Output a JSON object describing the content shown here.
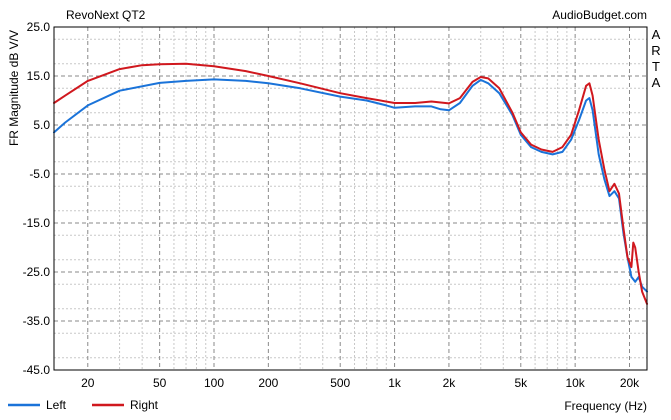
{
  "chart_data": {
    "type": "line",
    "title": "RevoNext QT2",
    "watermark": "AudioBudget.com",
    "side_label": "ARTA",
    "xlabel": "Frequency (Hz)",
    "ylabel": "FR Magnitude dB V/V",
    "x_scale": "log",
    "xlim": [
      13,
      25000
    ],
    "ylim": [
      -45,
      25
    ],
    "grid": true,
    "y_ticks": [
      25.0,
      15.0,
      5.0,
      -5.0,
      -15.0,
      -25.0,
      -35.0,
      -45.0
    ],
    "y_tick_labels": [
      "25.0",
      "15.0",
      "5.0",
      "-5.0",
      "-15.0",
      "-25.0",
      "-35.0",
      "-45.0"
    ],
    "x_ticks": [
      20,
      50,
      100,
      200,
      500,
      1000,
      2000,
      5000,
      10000,
      20000
    ],
    "x_tick_labels": [
      "20",
      "50",
      "100",
      "200",
      "500",
      "1k",
      "2k",
      "5k",
      "10k",
      "20k"
    ],
    "legend_position": "bottom-left",
    "series": [
      {
        "name": "Left",
        "color": "#1a73d9",
        "points": [
          [
            13,
            3.5
          ],
          [
            15,
            5.5
          ],
          [
            20,
            9.0
          ],
          [
            30,
            12.0
          ],
          [
            50,
            13.6
          ],
          [
            70,
            14.0
          ],
          [
            100,
            14.3
          ],
          [
            150,
            14.0
          ],
          [
            200,
            13.5
          ],
          [
            300,
            12.5
          ],
          [
            500,
            10.8
          ],
          [
            700,
            10.0
          ],
          [
            900,
            9.0
          ],
          [
            1000,
            8.5
          ],
          [
            1300,
            8.8
          ],
          [
            1600,
            8.8
          ],
          [
            1800,
            8.2
          ],
          [
            2000,
            8.0
          ],
          [
            2300,
            9.5
          ],
          [
            2700,
            13.0
          ],
          [
            3000,
            14.2
          ],
          [
            3300,
            13.5
          ],
          [
            3800,
            11.5
          ],
          [
            4500,
            7.0
          ],
          [
            5000,
            3.0
          ],
          [
            5700,
            0.5
          ],
          [
            6500,
            -0.5
          ],
          [
            7500,
            -1.0
          ],
          [
            8500,
            -0.5
          ],
          [
            9500,
            2.0
          ],
          [
            10500,
            6.0
          ],
          [
            11500,
            10.0
          ],
          [
            12000,
            10.5
          ],
          [
            12500,
            8.0
          ],
          [
            13500,
            -1.0
          ],
          [
            14500,
            -6.0
          ],
          [
            15500,
            -9.5
          ],
          [
            16500,
            -8.5
          ],
          [
            17500,
            -10.0
          ],
          [
            18500,
            -17.0
          ],
          [
            19500,
            -22.0
          ],
          [
            20500,
            -26.0
          ],
          [
            21500,
            -27.0
          ],
          [
            22500,
            -26.0
          ],
          [
            23500,
            -28.0
          ],
          [
            25000,
            -29.0
          ]
        ]
      },
      {
        "name": "Right",
        "color": "#d0181e",
        "points": [
          [
            13,
            9.5
          ],
          [
            15,
            11.0
          ],
          [
            20,
            14.0
          ],
          [
            30,
            16.4
          ],
          [
            40,
            17.2
          ],
          [
            50,
            17.4
          ],
          [
            70,
            17.5
          ],
          [
            100,
            17.0
          ],
          [
            150,
            16.0
          ],
          [
            200,
            15.0
          ],
          [
            300,
            13.5
          ],
          [
            500,
            11.5
          ],
          [
            700,
            10.5
          ],
          [
            1000,
            9.5
          ],
          [
            1300,
            9.5
          ],
          [
            1600,
            9.8
          ],
          [
            1800,
            9.6
          ],
          [
            2000,
            9.4
          ],
          [
            2300,
            10.5
          ],
          [
            2700,
            13.8
          ],
          [
            3000,
            14.8
          ],
          [
            3300,
            14.5
          ],
          [
            3800,
            12.5
          ],
          [
            4500,
            7.5
          ],
          [
            5000,
            3.5
          ],
          [
            5700,
            1.0
          ],
          [
            6500,
            0
          ],
          [
            7500,
            -0.5
          ],
          [
            8500,
            0.5
          ],
          [
            9500,
            3.0
          ],
          [
            10500,
            8.0
          ],
          [
            11500,
            13.0
          ],
          [
            12000,
            13.5
          ],
          [
            12500,
            11.0
          ],
          [
            13500,
            2.0
          ],
          [
            14500,
            -4.0
          ],
          [
            15500,
            -8.5
          ],
          [
            16500,
            -7.0
          ],
          [
            17500,
            -9.0
          ],
          [
            18500,
            -16.0
          ],
          [
            19500,
            -22.0
          ],
          [
            20500,
            -24.0
          ],
          [
            21000,
            -19.0
          ],
          [
            21500,
            -20.0
          ],
          [
            22500,
            -25.0
          ],
          [
            23500,
            -29.0
          ],
          [
            25000,
            -31.5
          ]
        ]
      }
    ]
  }
}
